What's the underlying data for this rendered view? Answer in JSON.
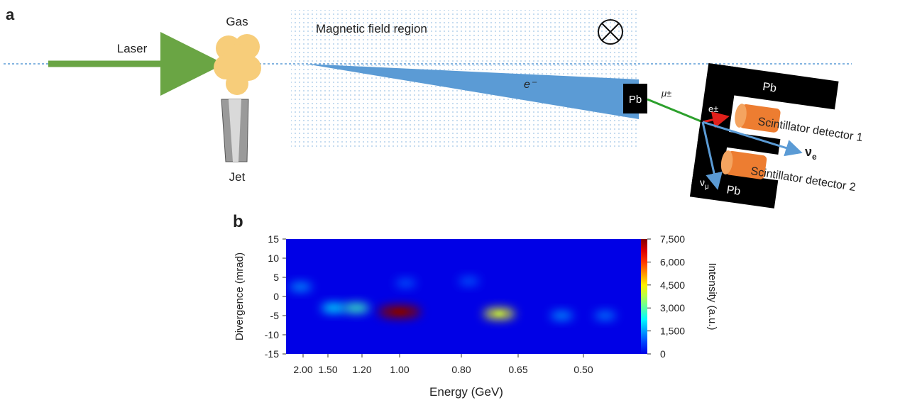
{
  "panel_a": {
    "letter": "a",
    "laser": "Laser",
    "gas": "Gas",
    "jet": "Jet",
    "field_region": "Magnetic field region",
    "electron": "e⁻",
    "lead_1": "Pb",
    "lead_2": "Pb",
    "lead_3": "Pb",
    "muon": "μ±",
    "positron": "e±",
    "detector_1": "Scintillator detector 1",
    "detector_2": "Scintillator detector 2",
    "nu_e": {
      "symbol": "ν",
      "subscript": "e"
    },
    "nu_mu": {
      "symbol": "ν",
      "subscript": "μ"
    }
  },
  "chart_data": {
    "type": "heatmap",
    "letter": "b",
    "x_label": "Energy (GeV)",
    "y_label": "Divergence (mrad)",
    "colorbar_label": "Intensity (a.u.)",
    "xticks": [
      {
        "value": 2.0,
        "label": "2.00"
      },
      {
        "value": 1.5,
        "label": "1.50"
      },
      {
        "value": 1.2,
        "label": "1.20"
      },
      {
        "value": 1.0,
        "label": "1.00"
      },
      {
        "value": 0.8,
        "label": "0.80"
      },
      {
        "value": 0.65,
        "label": "0.65"
      },
      {
        "value": 0.5,
        "label": "0.50"
      }
    ],
    "ylim": [
      -15,
      15
    ],
    "yticks": [
      15,
      10,
      5,
      0,
      -5,
      -10,
      -15
    ],
    "clim": [
      0,
      7500
    ],
    "cticks": [
      0,
      {
        "value": 1500,
        "label": "1,500"
      },
      {
        "value": 3000,
        "label": "3,000"
      },
      {
        "value": 4500,
        "label": "4,500"
      },
      {
        "value": 6000,
        "label": "6,000"
      },
      {
        "value": 7500,
        "label": "7,500"
      }
    ],
    "colormap": "jet",
    "spots": [
      {
        "energy": 2.05,
        "divergence": 2.5,
        "intensity": 1500
      },
      {
        "energy": 1.45,
        "divergence": -3,
        "intensity": 2200
      },
      {
        "energy": 1.25,
        "divergence": -3,
        "intensity": 2800
      },
      {
        "energy": 1.0,
        "divergence": -4,
        "intensity": 7500
      },
      {
        "energy": 0.98,
        "divergence": 3.5,
        "intensity": 1000
      },
      {
        "energy": 0.78,
        "divergence": 4,
        "intensity": 1000
      },
      {
        "energy": 0.7,
        "divergence": -4.5,
        "intensity": 4200
      },
      {
        "energy": 0.55,
        "divergence": -5,
        "intensity": 1500
      },
      {
        "energy": 0.45,
        "divergence": -5,
        "intensity": 1300
      }
    ]
  }
}
